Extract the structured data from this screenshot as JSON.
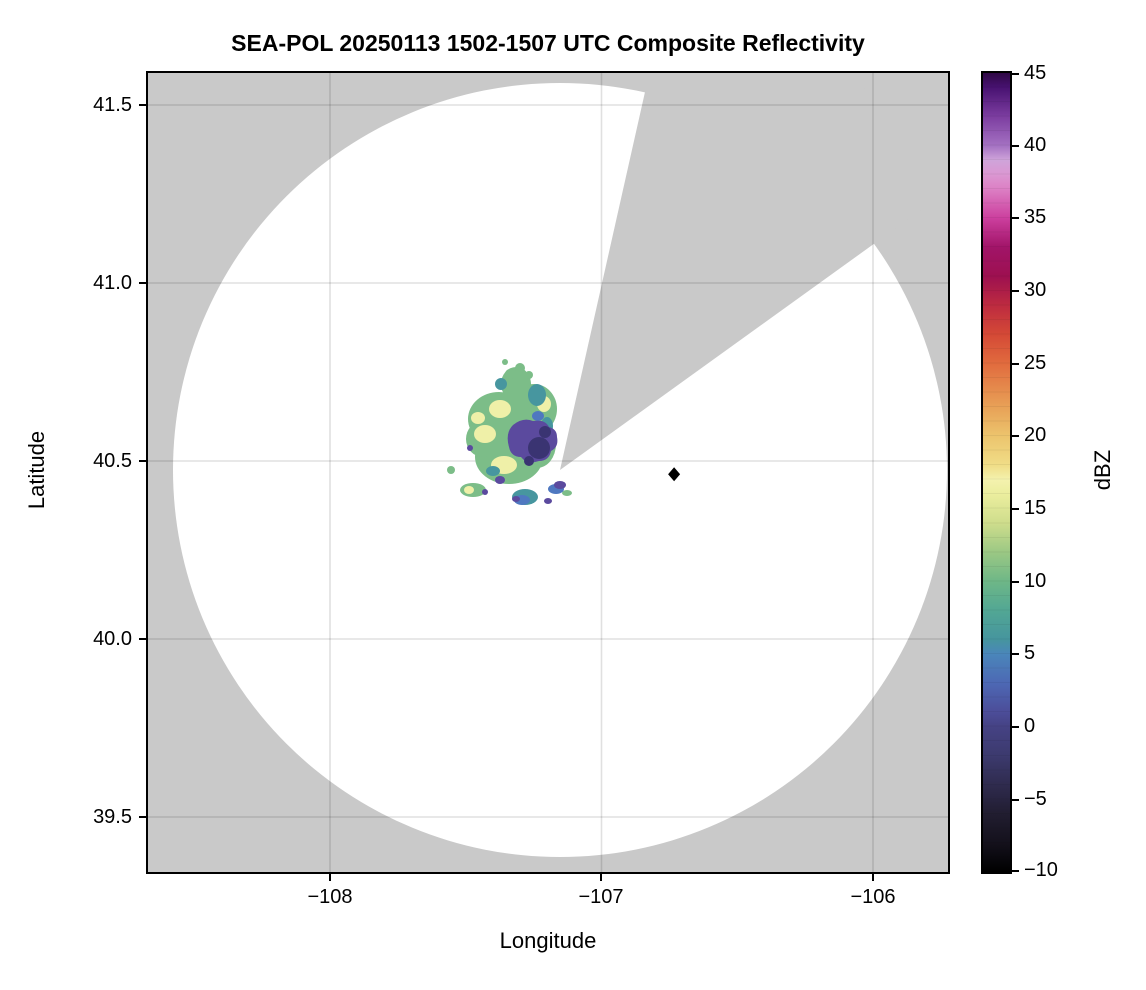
{
  "figure": {
    "background_color": "#ffffff",
    "no_data_color": "#c9c9c9",
    "grid_color": "rgba(0,0,0,0.12)"
  },
  "chart_data": {
    "type": "heatmap",
    "subtype": "radar-ppi-composite-reflectivity",
    "title": "SEA-POL 20250113 1502-1507 UTC Composite Reflectivity",
    "xlabel": "Longitude",
    "ylabel": "Latitude",
    "xlim": [
      -108.68,
      -105.73
    ],
    "ylim": [
      39.34,
      41.59
    ],
    "grid": true,
    "x_ticks": [
      -108,
      -107,
      -106
    ],
    "x_tick_labels": [
      "−108",
      "−107",
      "−106"
    ],
    "y_ticks": [
      41.5,
      41.0,
      40.5,
      40.0,
      39.5
    ],
    "y_tick_labels": [
      "41.5",
      "41.0",
      "40.5",
      "40.0",
      "39.5"
    ],
    "colorbar": {
      "label": "dBZ",
      "min": -10,
      "max": 45,
      "tick_values": [
        45,
        40,
        35,
        30,
        25,
        20,
        15,
        10,
        5,
        0,
        -5,
        -10
      ],
      "tick_labels": [
        "45",
        "40",
        "35",
        "30",
        "25",
        "20",
        "15",
        "10",
        "5",
        "0",
        "−5",
        "−10"
      ],
      "stops": [
        {
          "v": -10,
          "c": "#000000"
        },
        {
          "v": -8,
          "c": "#14111c"
        },
        {
          "v": -6,
          "c": "#211d30"
        },
        {
          "v": -5,
          "c": "#282440"
        },
        {
          "v": -4,
          "c": "#2f2b4e"
        },
        {
          "v": -2,
          "c": "#3c3a6e"
        },
        {
          "v": 0,
          "c": "#454284"
        },
        {
          "v": 1,
          "c": "#4c4d99"
        },
        {
          "v": 3,
          "c": "#4d68b4"
        },
        {
          "v": 5,
          "c": "#4a86ba"
        },
        {
          "v": 6,
          "c": "#46959e"
        },
        {
          "v": 8,
          "c": "#52a794"
        },
        {
          "v": 10,
          "c": "#6eb787"
        },
        {
          "v": 12,
          "c": "#9bc884"
        },
        {
          "v": 14,
          "c": "#cedd8c"
        },
        {
          "v": 16,
          "c": "#ebee9e"
        },
        {
          "v": 17,
          "c": "#f4f2ae"
        },
        {
          "v": 18,
          "c": "#f0dd87"
        },
        {
          "v": 20,
          "c": "#ecc46d"
        },
        {
          "v": 22,
          "c": "#e8a157"
        },
        {
          "v": 25,
          "c": "#e16b3e"
        },
        {
          "v": 27,
          "c": "#d44936"
        },
        {
          "v": 29,
          "c": "#bd2b40"
        },
        {
          "v": 31,
          "c": "#9d1050"
        },
        {
          "v": 33,
          "c": "#a11468"
        },
        {
          "v": 35,
          "c": "#cc3f9e"
        },
        {
          "v": 37,
          "c": "#dc7fc4"
        },
        {
          "v": 38,
          "c": "#db97d2"
        },
        {
          "v": 39,
          "c": "#cfa4da"
        },
        {
          "v": 40,
          "c": "#a471c2"
        },
        {
          "v": 42,
          "c": "#7c3da0"
        },
        {
          "v": 44,
          "c": "#481271"
        },
        {
          "v": 45,
          "c": "#2f0845"
        }
      ]
    },
    "radar": {
      "center_lon": -107.15,
      "center_lat": 40.49,
      "range_km": 122,
      "coverage_fill": "#ffffff",
      "no_data_fill": "#c9c9c9",
      "blocked_sector_azimuth_deg": [
        13,
        54
      ]
    },
    "marker": {
      "lon": -106.74,
      "lat": 40.46,
      "symbol": "diamond",
      "color": "#000000"
    },
    "echo": {
      "centroid_lon": -107.3,
      "centroid_lat": 40.55,
      "lon_extent": [
        -107.45,
        -106.95
      ],
      "lat_extent": [
        40.35,
        40.75
      ],
      "max_dbz": 18,
      "typical_dbz": 10,
      "palette": {
        "core_yellow": "#eff0a8",
        "body_green": "#7cbd88",
        "fringe_teal": "#47969f",
        "fringe_blue": "#4f78c0",
        "minima_purple": "#5b4a9e",
        "minima_dark": "#3a3472"
      },
      "note": "Small cell cluster just west-northwest of the radar; pale-yellow cores ~15-18 dBZ, green body ~8-12 dBZ, teal/blue fringes ~3-7 dBZ, dark purple minima ~-2 to 2 dBZ; scattered weak cells to the south."
    }
  }
}
